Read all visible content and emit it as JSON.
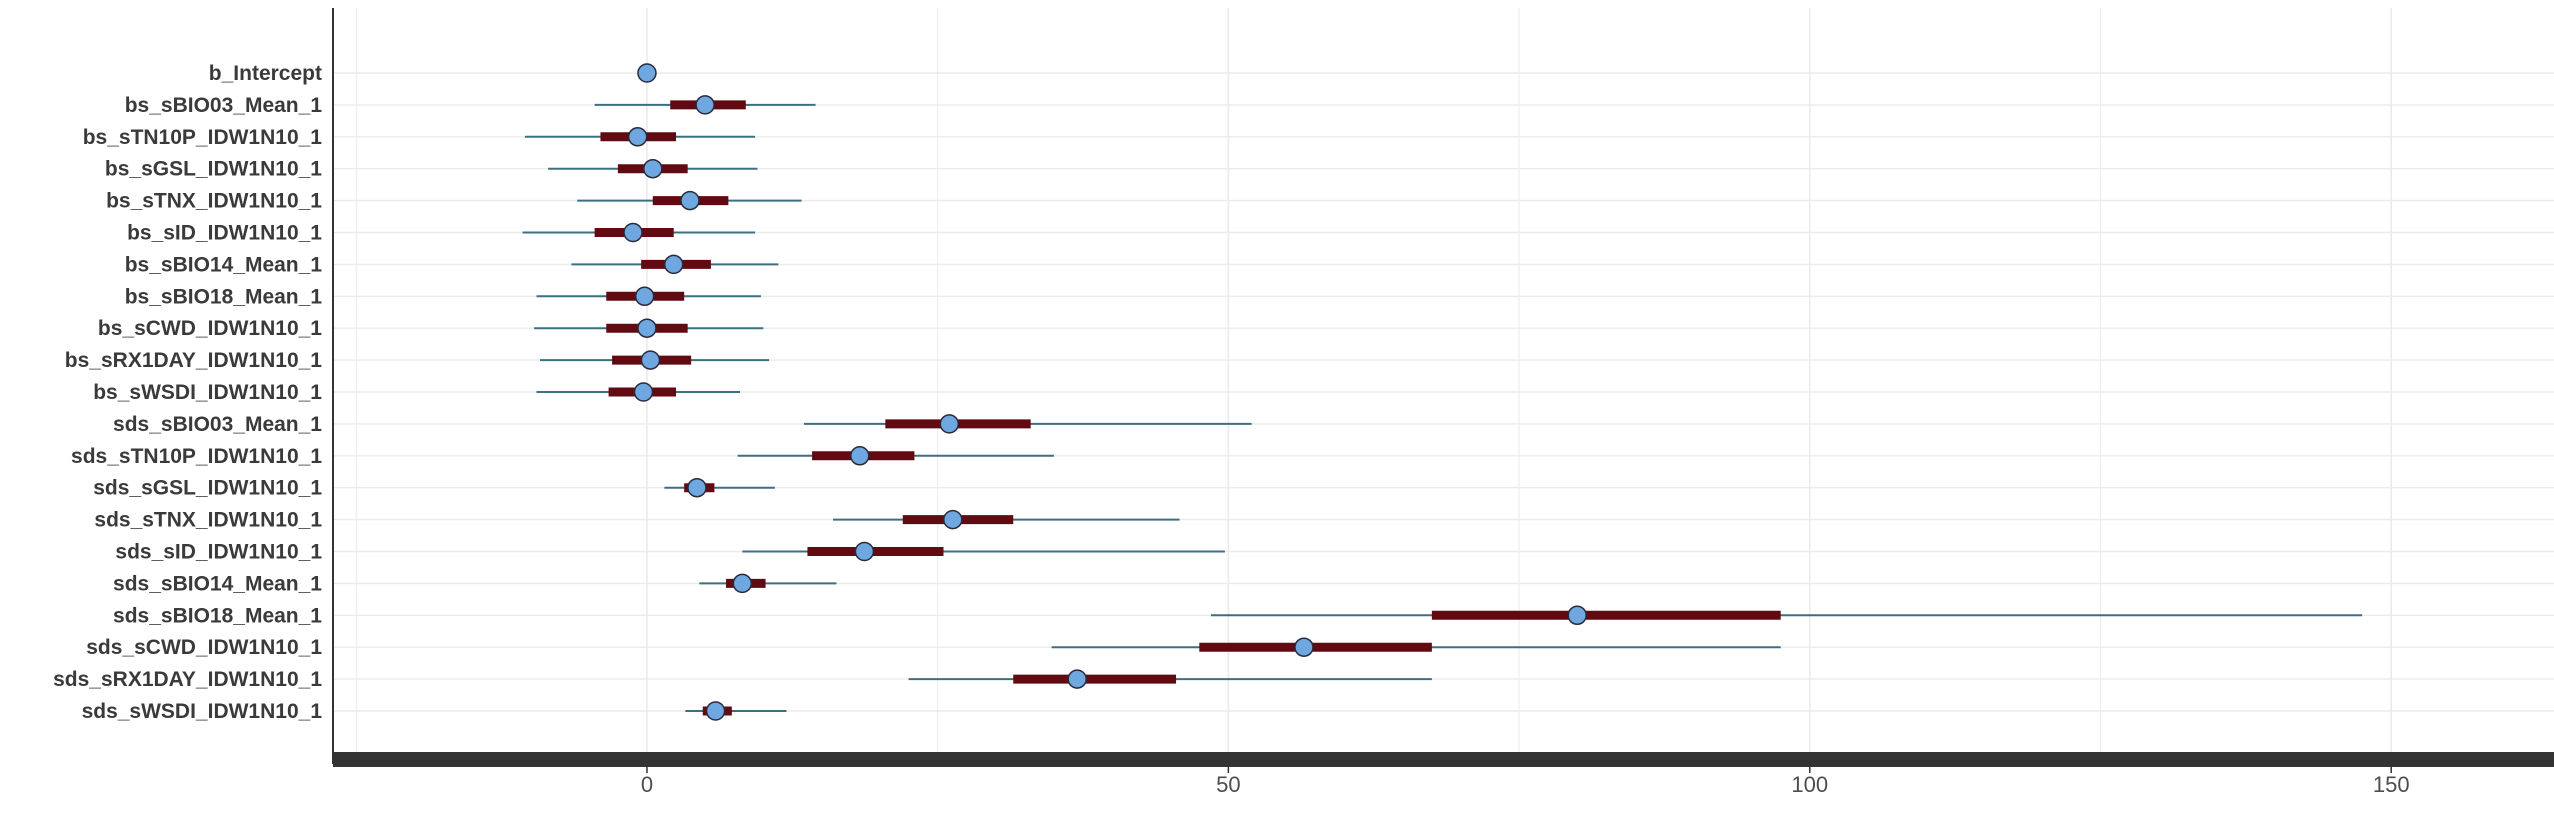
{
  "chart_data": {
    "type": "interval-plot",
    "title": "",
    "xlabel": "",
    "ylabel": "",
    "xlim": [
      -27,
      164
    ],
    "x_ticks": [
      0,
      50,
      100,
      150
    ],
    "x_tick_labels": [
      "0",
      "50",
      "100",
      "150"
    ],
    "grid": true,
    "colors": {
      "outer_interval": "#3d6f82",
      "inner_interval": "#620a12",
      "point_fill": "#6fa8e0",
      "point_stroke": "#2a2a3a",
      "axis_bar": "#333333",
      "grid": "#ebebeb"
    },
    "parameters": [
      {
        "name": "b_Intercept",
        "ll": 0,
        "l": 0,
        "m": 0,
        "h": 0,
        "hh": 0
      },
      {
        "name": "bs_sBIO03_Mean_1",
        "ll": -4.5,
        "l": 2.0,
        "m": 5.0,
        "h": 8.5,
        "hh": 14.5
      },
      {
        "name": "bs_sTN10P_IDW1N10_1",
        "ll": -10.5,
        "l": -4.0,
        "m": -0.8,
        "h": 2.5,
        "hh": 9.3
      },
      {
        "name": "bs_sGSL_IDW1N10_1",
        "ll": -8.5,
        "l": -2.5,
        "m": 0.5,
        "h": 3.5,
        "hh": 9.5
      },
      {
        "name": "bs_sTNX_IDW1N10_1",
        "ll": -6.0,
        "l": 0.5,
        "m": 3.7,
        "h": 7.0,
        "hh": 13.3
      },
      {
        "name": "bs_sID_IDW1N10_1",
        "ll": -10.7,
        "l": -4.5,
        "m": -1.2,
        "h": 2.3,
        "hh": 9.3
      },
      {
        "name": "bs_sBIO14_Mean_1",
        "ll": -6.5,
        "l": -0.5,
        "m": 2.3,
        "h": 5.5,
        "hh": 11.3
      },
      {
        "name": "bs_sBIO18_Mean_1",
        "ll": -9.5,
        "l": -3.5,
        "m": -0.2,
        "h": 3.2,
        "hh": 9.8
      },
      {
        "name": "bs_sCWD_IDW1N10_1",
        "ll": -9.7,
        "l": -3.5,
        "m": 0.0,
        "h": 3.5,
        "hh": 10.0
      },
      {
        "name": "bs_sRX1DAY_IDW1N10_1",
        "ll": -9.2,
        "l": -3.0,
        "m": 0.3,
        "h": 3.8,
        "hh": 10.5
      },
      {
        "name": "bs_sWSDI_IDW1N10_1",
        "ll": -9.5,
        "l": -3.3,
        "m": -0.3,
        "h": 2.5,
        "hh": 8.0
      },
      {
        "name": "sds_sBIO03_Mean_1",
        "ll": 13.5,
        "l": 20.5,
        "m": 26.0,
        "h": 33.0,
        "hh": 52.0
      },
      {
        "name": "sds_sTN10P_IDW1N10_1",
        "ll": 7.8,
        "l": 14.2,
        "m": 18.3,
        "h": 23.0,
        "hh": 35.0
      },
      {
        "name": "sds_sGSL_IDW1N10_1",
        "ll": 1.5,
        "l": 3.2,
        "m": 4.3,
        "h": 5.8,
        "hh": 11.0
      },
      {
        "name": "sds_sTNX_IDW1N10_1",
        "ll": 16.0,
        "l": 22.0,
        "m": 26.3,
        "h": 31.5,
        "hh": 45.8
      },
      {
        "name": "sds_sID_IDW1N10_1",
        "ll": 8.2,
        "l": 13.8,
        "m": 18.7,
        "h": 25.5,
        "hh": 49.7
      },
      {
        "name": "sds_sBIO14_Mean_1",
        "ll": 4.5,
        "l": 6.8,
        "m": 8.2,
        "h": 10.2,
        "hh": 16.3
      },
      {
        "name": "sds_sBIO18_Mean_1",
        "ll": 48.5,
        "l": 67.5,
        "m": 80.0,
        "h": 97.5,
        "hh": 147.5
      },
      {
        "name": "sds_sCWD_IDW1N10_1",
        "ll": 34.8,
        "l": 47.5,
        "m": 56.5,
        "h": 67.5,
        "hh": 97.5
      },
      {
        "name": "sds_sRX1DAY_IDW1N10_1",
        "ll": 22.5,
        "l": 31.5,
        "m": 37.0,
        "h": 45.5,
        "hh": 67.5
      },
      {
        "name": "sds_sWSDI_IDW1N10_1",
        "ll": 3.3,
        "l": 4.8,
        "m": 5.9,
        "h": 7.3,
        "hh": 12.0
      }
    ]
  }
}
